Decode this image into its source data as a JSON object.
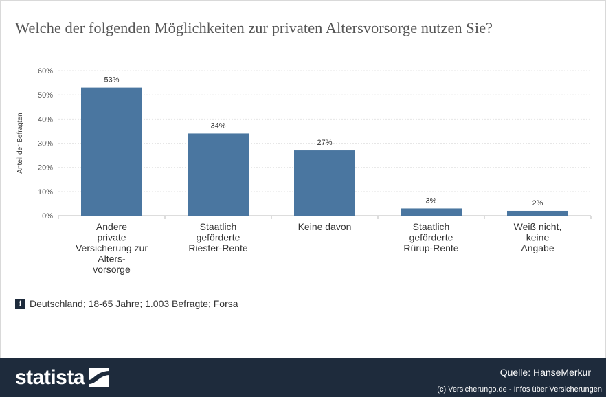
{
  "chart_data": {
    "type": "bar",
    "title": "Welche der folgenden Möglichkeiten zur privaten Altersvorsorge nutzen Sie?",
    "ylabel": "Anteil der Befragten",
    "categories": [
      [
        "Andere",
        "private",
        "Versicherung zur",
        "Alters-",
        "vorsorge"
      ],
      [
        "Staatlich",
        "geförderte",
        "Riester-Rente"
      ],
      [
        "Keine davon"
      ],
      [
        "Staatlich",
        "geförderte",
        "Rürup-Rente"
      ],
      [
        "Weiß nicht,",
        "keine",
        "Angabe"
      ]
    ],
    "values": [
      53,
      34,
      27,
      3,
      2
    ],
    "value_labels": [
      "53%",
      "34%",
      "27%",
      "3%",
      "2%"
    ],
    "ylim": [
      0,
      60
    ],
    "yticks": [
      0,
      10,
      20,
      30,
      40,
      50,
      60
    ],
    "ytick_labels": [
      "0%",
      "10%",
      "20%",
      "30%",
      "40%",
      "50%",
      "60%"
    ],
    "grid": true,
    "bar_color": "#4a76a0"
  },
  "note": "Deutschland; 18-65 Jahre; 1.003 Befragte; Forsa",
  "info_icon": "info-icon",
  "footer": {
    "logo": "statista",
    "source": "Quelle: HanseMerkur",
    "copyright": "(c) Versicherungo.de - Infos über Versicherungen",
    "background": "#1e2b3c"
  }
}
